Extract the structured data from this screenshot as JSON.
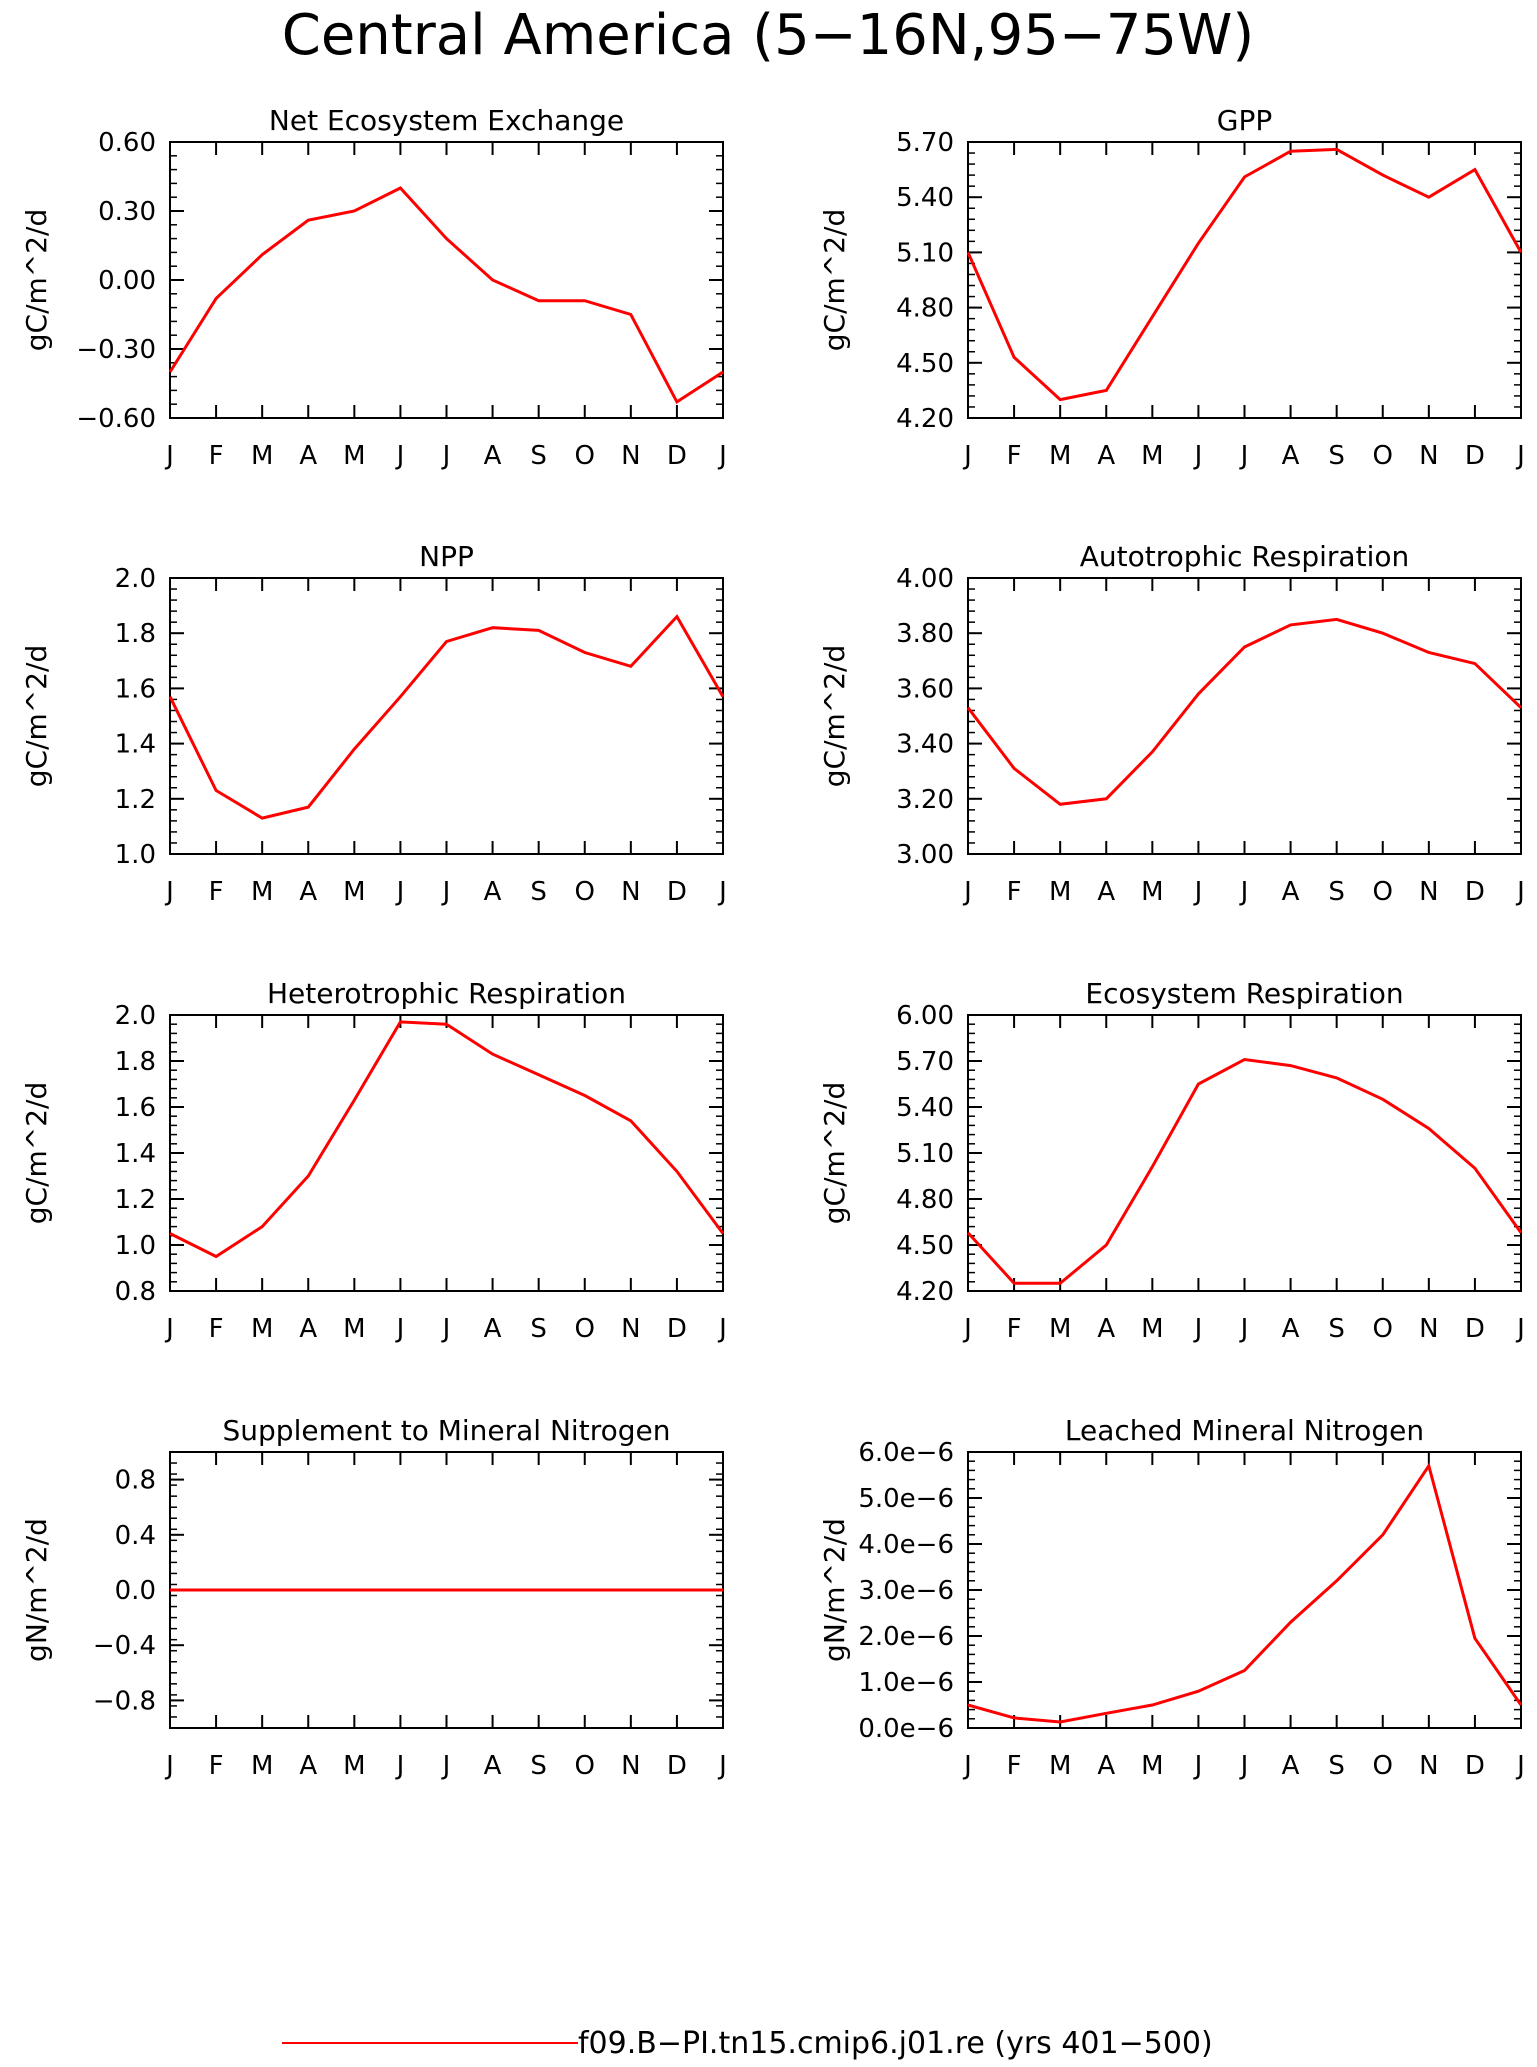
{
  "figure": {
    "title": "Central America (5−16N,95−75W)",
    "legend_label": "f09.B−PI.tn15.cmip6.j01.re (yrs 401−500)",
    "series_color": "#ff0000"
  },
  "chart_data": [
    {
      "type": "line",
      "title": "Net Ecosystem Exchange",
      "ylabel": "gC/m^2/d",
      "categories": [
        "J",
        "F",
        "M",
        "A",
        "M",
        "J",
        "J",
        "A",
        "S",
        "O",
        "N",
        "D",
        "J"
      ],
      "ylim": [
        -0.6,
        0.6
      ],
      "yticks": [
        -0.6,
        -0.3,
        0.0,
        0.3,
        0.6
      ],
      "ytick_labels": [
        "−0.60",
        "−0.30",
        "0.00",
        "0.30",
        "0.60"
      ],
      "series": [
        {
          "values": [
            -0.4,
            -0.08,
            0.11,
            0.26,
            0.3,
            0.4,
            0.18,
            0.0,
            -0.09,
            -0.09,
            -0.15,
            -0.53,
            -0.4
          ]
        }
      ]
    },
    {
      "type": "line",
      "title": "GPP",
      "ylabel": "gC/m^2/d",
      "categories": [
        "J",
        "F",
        "M",
        "A",
        "M",
        "J",
        "J",
        "A",
        "S",
        "O",
        "N",
        "D",
        "J"
      ],
      "ylim": [
        4.2,
        5.7
      ],
      "yticks": [
        4.2,
        4.5,
        4.8,
        5.1,
        5.4,
        5.7
      ],
      "ytick_labels": [
        "4.20",
        "4.50",
        "4.80",
        "5.10",
        "5.40",
        "5.70"
      ],
      "series": [
        {
          "values": [
            5.1,
            4.53,
            4.3,
            4.35,
            4.75,
            5.15,
            5.51,
            5.65,
            5.66,
            5.52,
            5.4,
            5.55,
            5.1
          ]
        }
      ]
    },
    {
      "type": "line",
      "title": "NPP",
      "ylabel": "gC/m^2/d",
      "categories": [
        "J",
        "F",
        "M",
        "A",
        "M",
        "J",
        "J",
        "A",
        "S",
        "O",
        "N",
        "D",
        "J"
      ],
      "ylim": [
        1.0,
        2.0
      ],
      "yticks": [
        1.0,
        1.2,
        1.4,
        1.6,
        1.8,
        2.0
      ],
      "ytick_labels": [
        "1.0",
        "1.2",
        "1.4",
        "1.6",
        "1.8",
        "2.0"
      ],
      "series": [
        {
          "values": [
            1.57,
            1.23,
            1.13,
            1.17,
            1.38,
            1.57,
            1.77,
            1.82,
            1.81,
            1.73,
            1.68,
            1.86,
            1.57
          ]
        }
      ]
    },
    {
      "type": "line",
      "title": "Autotrophic Respiration",
      "ylabel": "gC/m^2/d",
      "categories": [
        "J",
        "F",
        "M",
        "A",
        "M",
        "J",
        "J",
        "A",
        "S",
        "O",
        "N",
        "D",
        "J"
      ],
      "ylim": [
        3.0,
        4.0
      ],
      "yticks": [
        3.0,
        3.2,
        3.4,
        3.6,
        3.8,
        4.0
      ],
      "ytick_labels": [
        "3.00",
        "3.20",
        "3.40",
        "3.60",
        "3.80",
        "4.00"
      ],
      "series": [
        {
          "values": [
            3.53,
            3.31,
            3.18,
            3.2,
            3.37,
            3.58,
            3.75,
            3.83,
            3.85,
            3.8,
            3.73,
            3.69,
            3.53
          ]
        }
      ]
    },
    {
      "type": "line",
      "title": "Heterotrophic Respiration",
      "ylabel": "gC/m^2/d",
      "categories": [
        "J",
        "F",
        "M",
        "A",
        "M",
        "J",
        "J",
        "A",
        "S",
        "O",
        "N",
        "D",
        "J"
      ],
      "ylim": [
        0.8,
        2.0
      ],
      "yticks": [
        0.8,
        1.0,
        1.2,
        1.4,
        1.6,
        1.8,
        2.0
      ],
      "ytick_labels": [
        "0.8",
        "1.0",
        "1.2",
        "1.4",
        "1.6",
        "1.8",
        "2.0"
      ],
      "series": [
        {
          "values": [
            1.05,
            0.95,
            1.08,
            1.3,
            1.63,
            1.97,
            1.96,
            1.83,
            1.74,
            1.65,
            1.54,
            1.32,
            1.05
          ]
        }
      ]
    },
    {
      "type": "line",
      "title": "Ecosystem Respiration",
      "ylabel": "gC/m^2/d",
      "categories": [
        "J",
        "F",
        "M",
        "A",
        "M",
        "J",
        "J",
        "A",
        "S",
        "O",
        "N",
        "D",
        "J"
      ],
      "ylim": [
        4.2,
        6.0
      ],
      "yticks": [
        4.2,
        4.5,
        4.8,
        5.1,
        5.4,
        5.7,
        6.0
      ],
      "ytick_labels": [
        "4.20",
        "4.50",
        "4.80",
        "5.10",
        "5.40",
        "5.70",
        "6.00"
      ],
      "series": [
        {
          "values": [
            4.58,
            4.25,
            4.25,
            4.5,
            5.01,
            5.55,
            5.71,
            5.67,
            5.59,
            5.45,
            5.26,
            5.0,
            4.58
          ]
        }
      ]
    },
    {
      "type": "line",
      "title": "Supplement to Mineral Nitrogen",
      "ylabel": "gN/m^2/d",
      "categories": [
        "J",
        "F",
        "M",
        "A",
        "M",
        "J",
        "J",
        "A",
        "S",
        "O",
        "N",
        "D",
        "J"
      ],
      "ylim": [
        -1.0,
        1.0
      ],
      "yticks": [
        -0.8,
        -0.4,
        0.0,
        0.4,
        0.8
      ],
      "ytick_labels": [
        "−0.8",
        "−0.4",
        "0.0",
        "0.4",
        "0.8"
      ],
      "series": [
        {
          "values": [
            0,
            0,
            0,
            0,
            0,
            0,
            0,
            0,
            0,
            0,
            0,
            0,
            0
          ]
        }
      ]
    },
    {
      "type": "line",
      "title": "Leached Mineral Nitrogen",
      "ylabel": "gN/m^2/d",
      "categories": [
        "J",
        "F",
        "M",
        "A",
        "M",
        "J",
        "J",
        "A",
        "S",
        "O",
        "N",
        "D",
        "J"
      ],
      "ylim": [
        0.0,
        6e-06
      ],
      "yticks": [
        0.0,
        1e-06,
        2e-06,
        3e-06,
        4e-06,
        5e-06,
        6e-06
      ],
      "ytick_labels": [
        "0.0e−6",
        "1.0e−6",
        "2.0e−6",
        "3.0e−6",
        "4.0e−6",
        "5.0e−6",
        "6.0e−6"
      ],
      "series": [
        {
          "values": [
            5e-07,
            2.2e-07,
            1.3e-07,
            3.2e-07,
            5e-07,
            8e-07,
            1.25e-06,
            2.3e-06,
            3.2e-06,
            4.2e-06,
            5.7e-06,
            1.95e-06,
            5e-07
          ]
        }
      ]
    }
  ]
}
